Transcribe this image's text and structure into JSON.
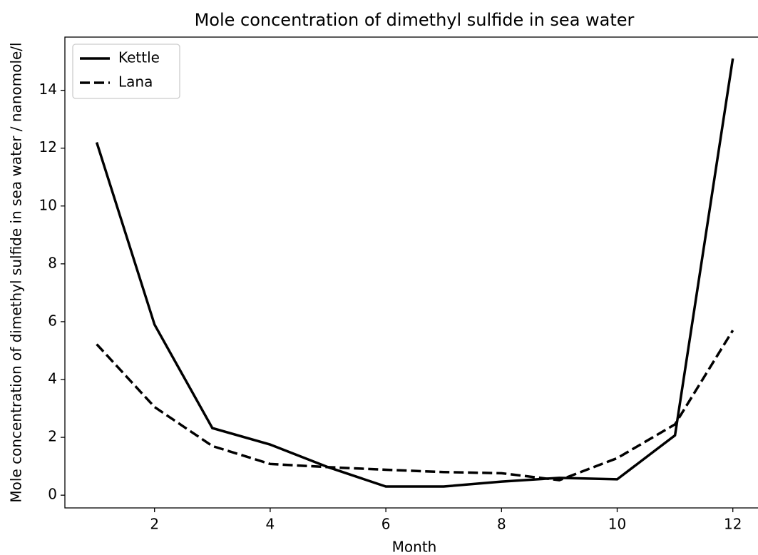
{
  "chart_data": {
    "type": "line",
    "title": "Mole concentration of dimethyl sulfide in sea water",
    "x_label": "Month",
    "y_label": "Mole concentration of dimethyl sulfide in sea water / nanomole/l",
    "x": [
      1,
      2,
      3,
      4,
      5,
      6,
      7,
      8,
      9,
      10,
      11,
      12
    ],
    "series": [
      {
        "name": "Kettle",
        "color": "#000000",
        "linestyle": "solid",
        "values": [
          12.2,
          5.9,
          2.32,
          1.75,
          0.97,
          0.3,
          0.3,
          0.47,
          0.6,
          0.55,
          2.07,
          15.1
        ]
      },
      {
        "name": "Lana",
        "color": "#000000",
        "linestyle": "dashed",
        "values": [
          5.22,
          3.05,
          1.7,
          1.08,
          0.97,
          0.88,
          0.8,
          0.76,
          0.52,
          1.28,
          2.45,
          5.7
        ]
      }
    ],
    "xlim": [
      0.45,
      12.55
    ],
    "xticks": [
      2,
      4,
      6,
      8,
      10,
      12
    ],
    "ylim": [
      -0.44,
      15.84
    ],
    "yticks": [
      0,
      2,
      4,
      6,
      8,
      10,
      12,
      14
    ],
    "grid": false,
    "legend": "upper-left"
  }
}
